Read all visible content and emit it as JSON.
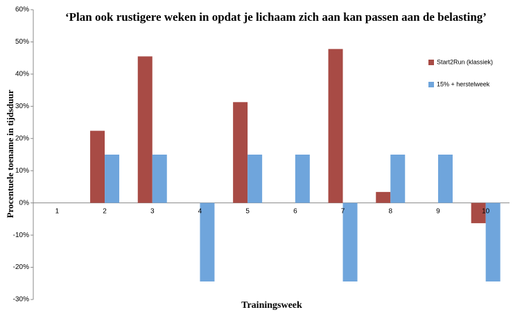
{
  "chart_data": {
    "type": "bar",
    "title": "‘Plan ook rustigere weken in opdat je lichaam zich aan kan passen aan de belasting’",
    "x_label": "Trainingsweek",
    "y_label": "Procentuele toename in tijdsduur",
    "categories": [
      "1",
      "2",
      "3",
      "4",
      "5",
      "6",
      "7",
      "8",
      "9",
      "10"
    ],
    "series": [
      {
        "name": "Start2Run (klassiek)",
        "color": "#a84b45",
        "values": [
          0,
          22.4,
          45.5,
          0,
          31.3,
          0,
          47.8,
          3.4,
          0,
          -6.3
        ]
      },
      {
        "name": "15% + herstelweek",
        "color": "#6fa5dc",
        "values": [
          0,
          15,
          15,
          -24.4,
          15,
          15,
          -24.4,
          15,
          15,
          -24.4
        ]
      }
    ],
    "ylim": [
      -30,
      60
    ],
    "yticks": [
      {
        "value": -30,
        "label": "-30%"
      },
      {
        "value": -20,
        "label": "-20%"
      },
      {
        "value": -10,
        "label": "-10%"
      },
      {
        "value": 0,
        "label": "0%"
      },
      {
        "value": 10,
        "label": "10%"
      },
      {
        "value": 20,
        "label": "20%"
      },
      {
        "value": 30,
        "label": "30%"
      },
      {
        "value": 40,
        "label": "40%"
      },
      {
        "value": 50,
        "label": "50%"
      },
      {
        "value": 60,
        "label": "60%"
      }
    ],
    "grid": false,
    "legend": "right"
  }
}
